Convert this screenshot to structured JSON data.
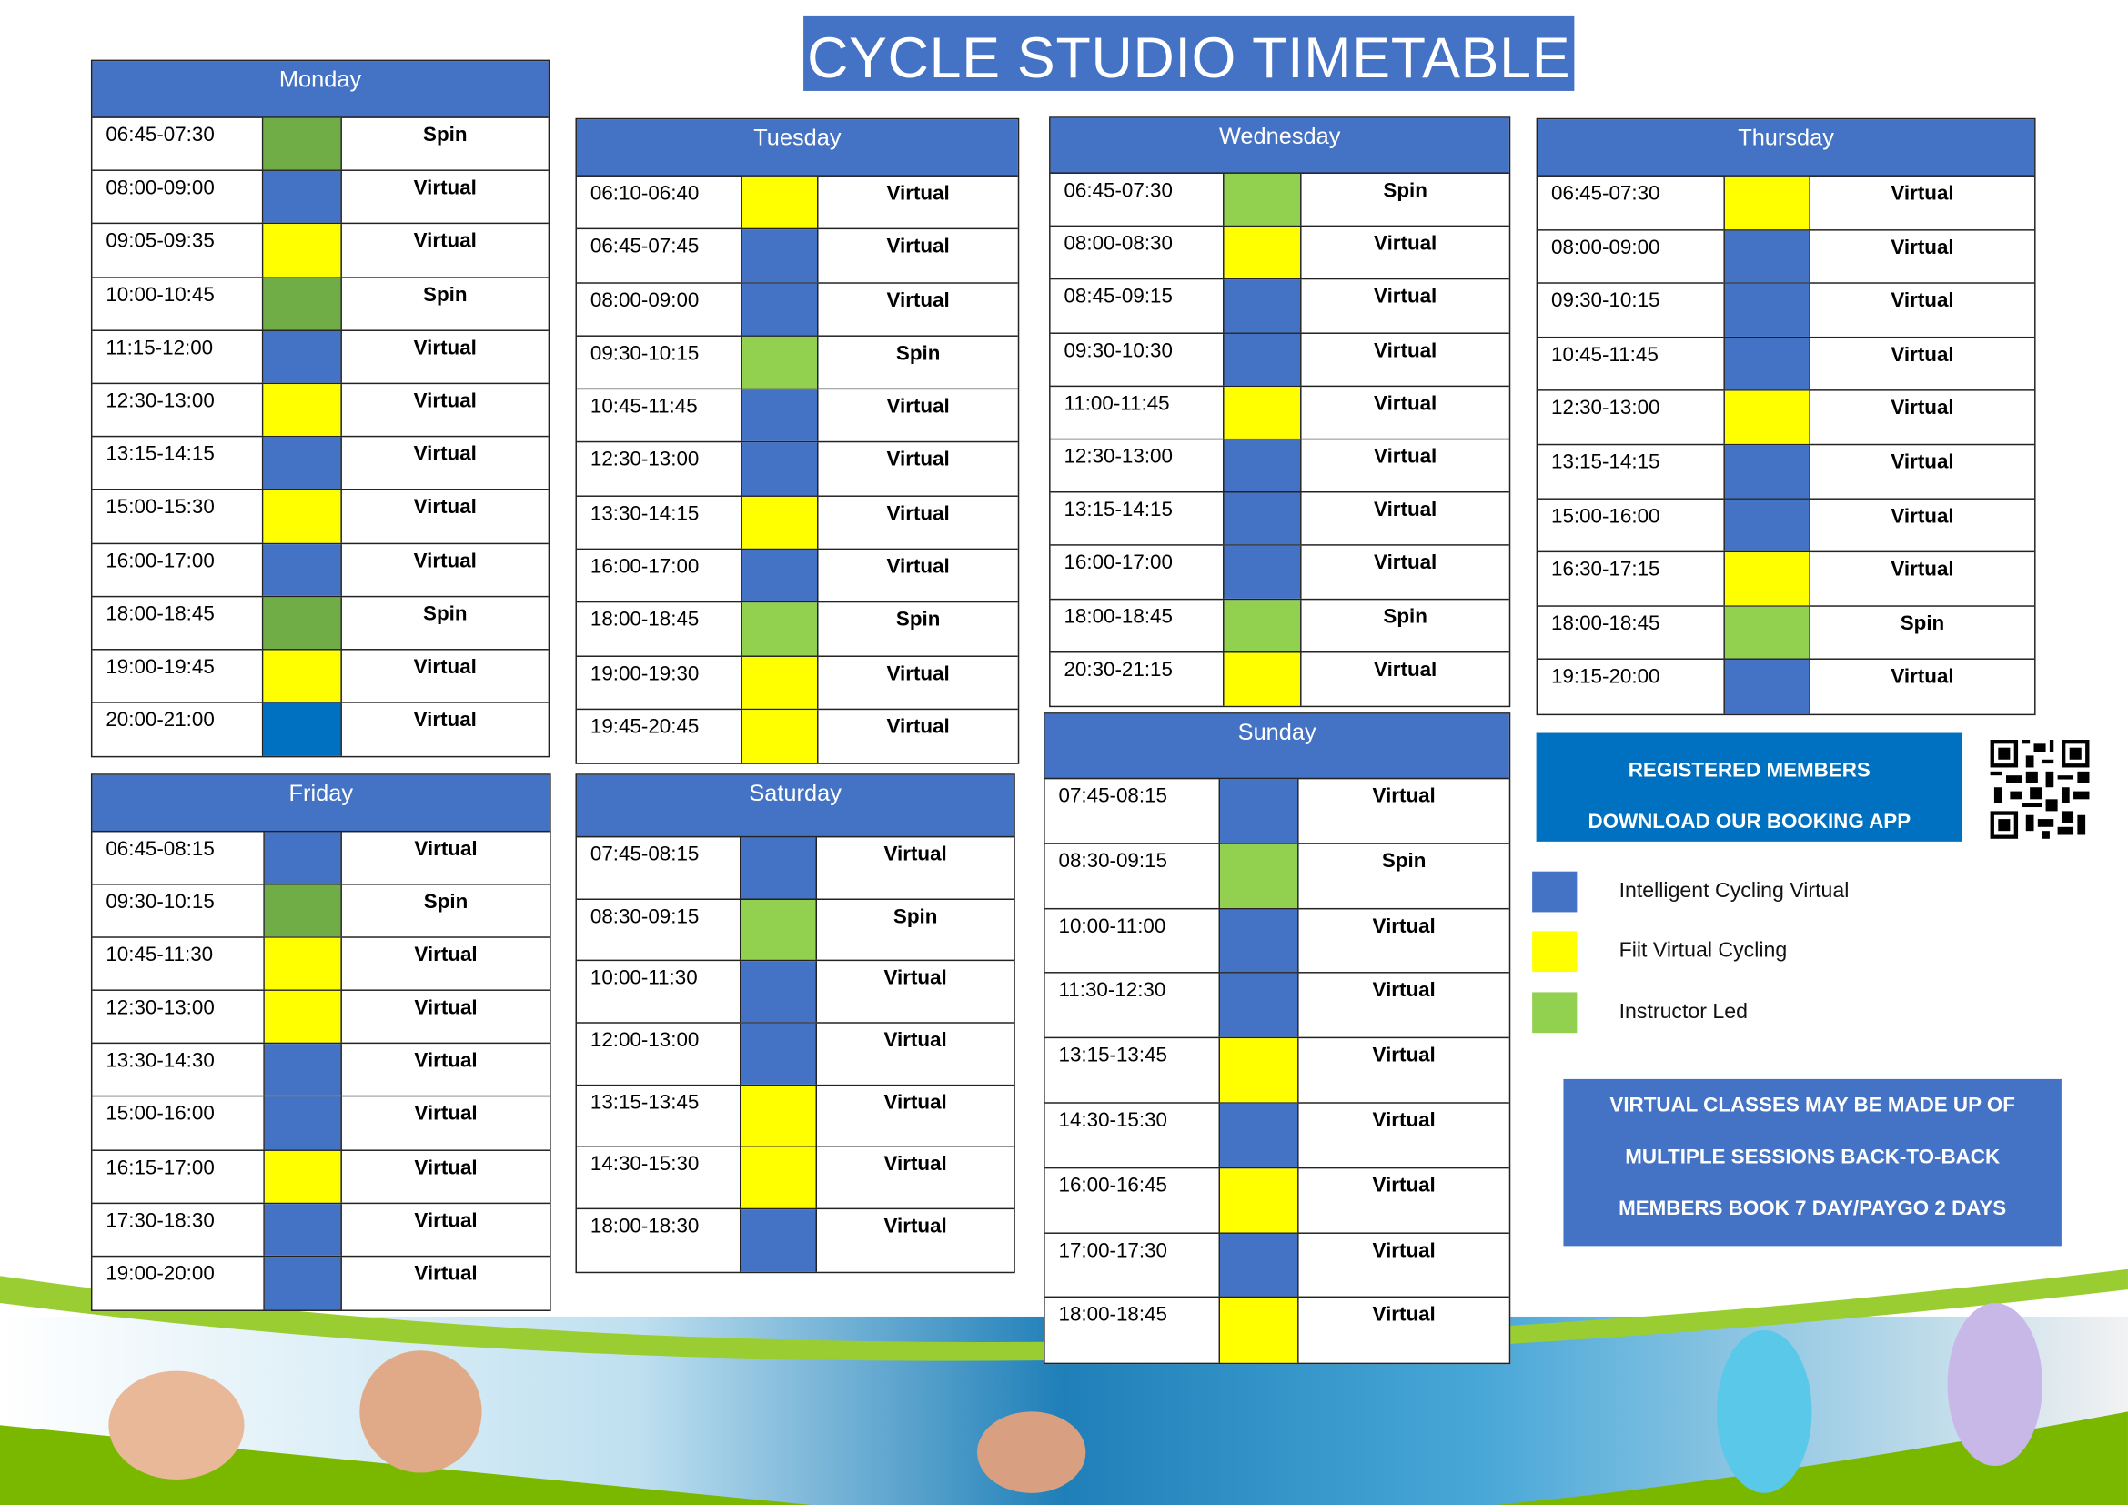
{
  "title": "CYCLE STUDIO TIMETABLE",
  "colors": {
    "blue": "#4472C4",
    "darkblue": "#0070C0",
    "yellow": "#FFFF00",
    "green": "#92D050",
    "darkgreen": "#70AD47"
  },
  "days": [
    {
      "name": "Monday",
      "rows": [
        [
          "06:45-07:30",
          "darkgreen",
          "Spin"
        ],
        [
          "08:00-09:00",
          "blue",
          "Virtual"
        ],
        [
          "09:05-09:35",
          "yellow",
          "Virtual"
        ],
        [
          "10:00-10:45",
          "darkgreen",
          "Spin"
        ],
        [
          "11:15-12:00",
          "blue",
          "Virtual"
        ],
        [
          "12:30-13:00",
          "yellow",
          "Virtual"
        ],
        [
          "13:15-14:15",
          "blue",
          "Virtual"
        ],
        [
          "15:00-15:30",
          "yellow",
          "Virtual"
        ],
        [
          "16:00-17:00",
          "blue",
          "Virtual"
        ],
        [
          "18:00-18:45",
          "darkgreen",
          "Spin"
        ],
        [
          "19:00-19:45",
          "yellow",
          "Virtual"
        ],
        [
          "20:00-21:00",
          "darkblue",
          "Virtual"
        ]
      ]
    },
    {
      "name": "Tuesday",
      "rows": [
        [
          "06:10-06:40",
          "yellow",
          "Virtual"
        ],
        [
          "06:45-07:45",
          "blue",
          "Virtual"
        ],
        [
          "08:00-09:00",
          "blue",
          "Virtual"
        ],
        [
          "09:30-10:15",
          "green",
          "Spin"
        ],
        [
          "10:45-11:45",
          "blue",
          "Virtual"
        ],
        [
          "12:30-13:00",
          "blue",
          "Virtual"
        ],
        [
          "13:30-14:15",
          "yellow",
          "Virtual"
        ],
        [
          "16:00-17:00",
          "blue",
          "Virtual"
        ],
        [
          "18:00-18:45",
          "green",
          "Spin"
        ],
        [
          "19:00-19:30",
          "yellow",
          "Virtual"
        ],
        [
          "19:45-20:45",
          "yellow",
          "Virtual"
        ]
      ]
    },
    {
      "name": "Wednesday",
      "rows": [
        [
          "06:45-07:30",
          "green",
          "Spin"
        ],
        [
          "08:00-08:30",
          "yellow",
          "Virtual"
        ],
        [
          "08:45-09:15",
          "blue",
          "Virtual"
        ],
        [
          "09:30-10:30",
          "blue",
          "Virtual"
        ],
        [
          "11:00-11:45",
          "yellow",
          "Virtual"
        ],
        [
          "12:30-13:00",
          "blue",
          "Virtual"
        ],
        [
          "13:15-14:15",
          "blue",
          "Virtual"
        ],
        [
          "16:00-17:00",
          "blue",
          "Virtual"
        ],
        [
          "18:00-18:45",
          "green",
          "Spin"
        ],
        [
          "20:30-21:15",
          "yellow",
          "Virtual"
        ]
      ]
    },
    {
      "name": "Thursday",
      "rows": [
        [
          "06:45-07:30",
          "yellow",
          "Virtual"
        ],
        [
          "08:00-09:00",
          "blue",
          "Virtual"
        ],
        [
          "09:30-10:15",
          "blue",
          "Virtual"
        ],
        [
          "10:45-11:45",
          "blue",
          "Virtual"
        ],
        [
          "12:30-13:00",
          "yellow",
          "Virtual"
        ],
        [
          "13:15-14:15",
          "blue",
          "Virtual"
        ],
        [
          "15:00-16:00",
          "blue",
          "Virtual"
        ],
        [
          "16:30-17:15",
          "yellow",
          "Virtual"
        ],
        [
          "18:00-18:45",
          "green",
          "Spin"
        ],
        [
          "19:15-20:00",
          "blue",
          "Virtual"
        ]
      ]
    },
    {
      "name": "Friday",
      "rows": [
        [
          "06:45-08:15",
          "blue",
          "Virtual"
        ],
        [
          "09:30-10:15",
          "darkgreen",
          "Spin"
        ],
        [
          "10:45-11:30",
          "yellow",
          "Virtual"
        ],
        [
          "12:30-13:00",
          "yellow",
          "Virtual"
        ],
        [
          "13:30-14:30",
          "blue",
          "Virtual"
        ],
        [
          "15:00-16:00",
          "blue",
          "Virtual"
        ],
        [
          "16:15-17:00",
          "yellow",
          "Virtual"
        ],
        [
          "17:30-18:30",
          "blue",
          "Virtual"
        ],
        [
          "19:00-20:00",
          "blue",
          "Virtual"
        ]
      ]
    },
    {
      "name": "Saturday",
      "rows": [
        [
          "07:45-08:15",
          "blue",
          "Virtual"
        ],
        [
          "08:30-09:15",
          "green",
          "Spin"
        ],
        [
          "10:00-11:30",
          "blue",
          "Virtual"
        ],
        [
          "12:00-13:00",
          "blue",
          "Virtual"
        ],
        [
          "13:15-13:45",
          "yellow",
          "Virtual"
        ],
        [
          "14:30-15:30",
          "yellow",
          "Virtual"
        ],
        [
          "18:00-18:30",
          "blue",
          "Virtual"
        ]
      ]
    },
    {
      "name": "Sunday",
      "rows": [
        [
          "07:45-08:15",
          "blue",
          "Virtual"
        ],
        [
          "08:30-09:15",
          "green",
          "Spin"
        ],
        [
          "10:00-11:00",
          "blue",
          "Virtual"
        ],
        [
          "11:30-12:30",
          "blue",
          "Virtual"
        ],
        [
          "13:15-13:45",
          "yellow",
          "Virtual"
        ],
        [
          "14:30-15:30",
          "blue",
          "Virtual"
        ],
        [
          "16:00-16:45",
          "yellow",
          "Virtual"
        ],
        [
          "17:00-17:30",
          "blue",
          "Virtual"
        ],
        [
          "18:00-18:45",
          "yellow",
          "Virtual"
        ]
      ]
    }
  ],
  "booking": {
    "line1": "REGISTERED MEMBERS",
    "line2": "DOWNLOAD OUR BOOKING APP"
  },
  "legend": [
    {
      "color": "blue",
      "label": "Intelligent Cycling Virtual"
    },
    {
      "color": "yellow",
      "label": "Fiit Virtual Cycling"
    },
    {
      "color": "green",
      "label": "Instructor Led"
    }
  ],
  "note": {
    "line1": "VIRTUAL CLASSES MAY BE MADE UP OF",
    "line2": "MULTIPLE SESSIONS BACK-TO-BACK",
    "line3": "MEMBERS BOOK 7 DAY/PAYGO 2 DAYS"
  }
}
